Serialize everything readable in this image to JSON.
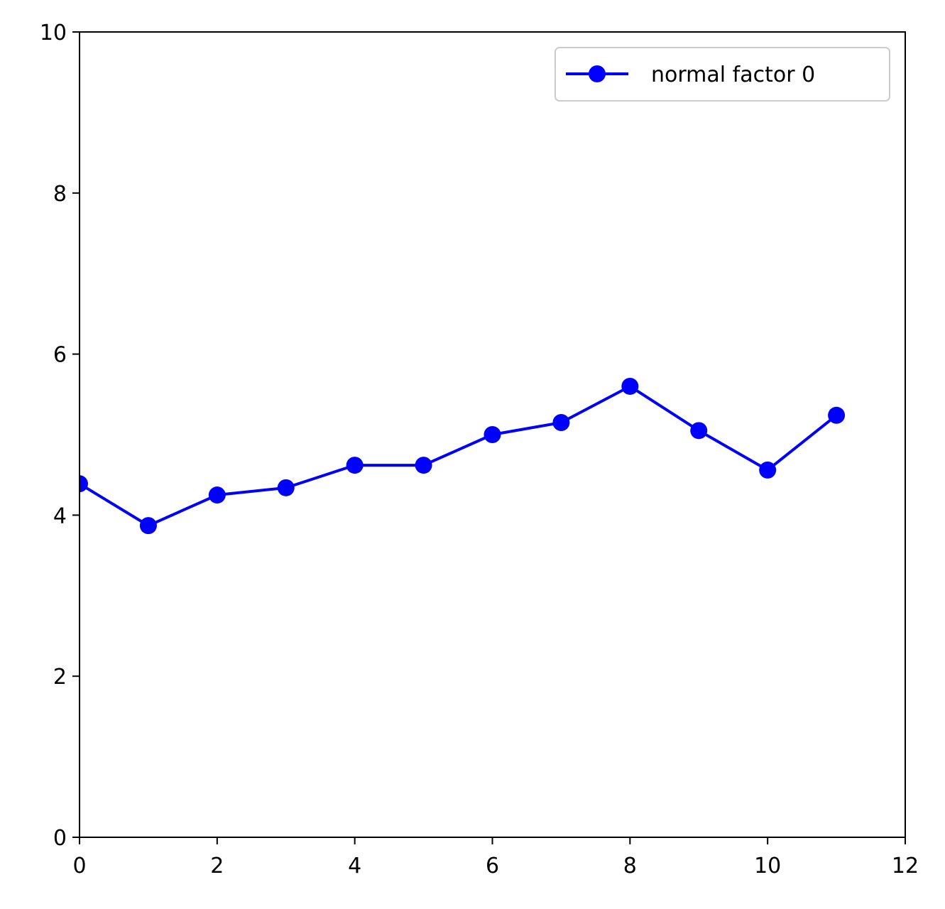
{
  "chart_data": {
    "type": "line",
    "title": "",
    "xlabel": "",
    "ylabel": "",
    "xlim": [
      0,
      12
    ],
    "ylim": [
      0,
      10
    ],
    "x_ticks": [
      "0",
      "2",
      "4",
      "6",
      "8",
      "10",
      "12"
    ],
    "y_ticks": [
      "0",
      "2",
      "4",
      "6",
      "8",
      "10"
    ],
    "grid": false,
    "legend_position": "top-right",
    "series": [
      {
        "name": "normal factor 0",
        "color": "#0000ff",
        "marker": "circle",
        "x": [
          0,
          1,
          2,
          3,
          4,
          5,
          6,
          7,
          8,
          9,
          10,
          11
        ],
        "y": [
          4.39,
          3.87,
          4.25,
          4.34,
          4.62,
          4.62,
          5.0,
          5.15,
          5.6,
          5.05,
          4.56,
          5.24
        ]
      }
    ]
  }
}
